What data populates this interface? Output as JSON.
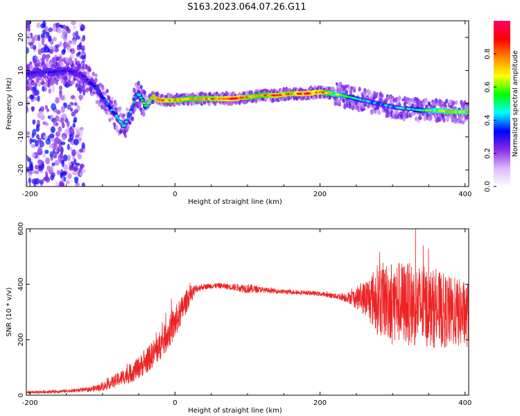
{
  "title": "S163.2023.064.07.26.G11",
  "chart_data": [
    {
      "type": "heatmap",
      "xlabel": "Height of straight line (km)",
      "ylabel": "Frequency (Hz)",
      "xlim": [
        -205,
        405
      ],
      "ylim": [
        -25,
        25
      ],
      "xticks": [
        -200,
        0,
        200,
        400
      ],
      "yticks": [
        20,
        10,
        0,
        -10,
        -20
      ],
      "colorbar": {
        "label": "Normalized spectral amplitude",
        "ticks": [
          "0.0",
          "0.2",
          "0.4",
          "0.6",
          "0.8"
        ],
        "range": [
          0,
          1
        ],
        "colormap": [
          "#ffffff",
          "#d9b8ff",
          "#8a2be2",
          "#0000ff",
          "#00ffff",
          "#00ff00",
          "#ffff00",
          "#ff8800",
          "#ff0000",
          "#ff0066"
        ]
      },
      "ridge": {
        "x": [
          -205,
          -190,
          -170,
          -150,
          -130,
          -110,
          -100,
          -90,
          -80,
          -70,
          -60,
          -55,
          -50,
          -45,
          -40,
          -35,
          -30,
          -20,
          0,
          20,
          50,
          80,
          100,
          120,
          140,
          160,
          180,
          200,
          220,
          240,
          260,
          280,
          300,
          320,
          340,
          360,
          380,
          405
        ],
        "y": [
          9,
          9.5,
          9.5,
          10,
          9,
          5,
          2,
          -1,
          -4,
          -7,
          -2,
          2,
          3,
          1,
          -1,
          1,
          2,
          1,
          1,
          1.5,
          1.5,
          1.5,
          2,
          2.5,
          2.5,
          3,
          3,
          3.5,
          3,
          2,
          1,
          0,
          -1,
          -1.5,
          -2,
          -2,
          -2.5,
          -2.5
        ],
        "amplitude": [
          0.3,
          0.35,
          0.35,
          0.35,
          0.3,
          0.35,
          0.4,
          0.4,
          0.45,
          0.5,
          0.5,
          0.5,
          0.5,
          0.6,
          0.6,
          0.7,
          0.85,
          0.9,
          0.85,
          0.8,
          0.85,
          0.95,
          0.85,
          0.8,
          0.9,
          0.85,
          0.95,
          0.9,
          0.7,
          0.6,
          0.5,
          0.45,
          0.45,
          0.5,
          0.6,
          0.7,
          0.75,
          0.7
        ]
      }
    },
    {
      "type": "line",
      "xlabel": "Height of straight line (km)",
      "ylabel": "SNR (10 * v/v)",
      "xlim": [
        -205,
        405
      ],
      "ylim": [
        0,
        600
      ],
      "xticks": [
        -200,
        0,
        200,
        400
      ],
      "yticks": [
        0,
        200,
        400,
        600
      ],
      "series": [
        {
          "color": "#ee2222",
          "x": [
            -205,
            -180,
            -150,
            -120,
            -100,
            -80,
            -60,
            -40,
            -20,
            0,
            10,
            20,
            30,
            40,
            60,
            80,
            100,
            120,
            140,
            160,
            180,
            200,
            220,
            240,
            260,
            280,
            300,
            320,
            340,
            360,
            380,
            405
          ],
          "y": [
            10,
            12,
            15,
            20,
            30,
            55,
            80,
            120,
            180,
            260,
            310,
            360,
            385,
            392,
            395,
            390,
            385,
            380,
            375,
            372,
            370,
            365,
            358,
            352,
            350,
            345,
            340,
            330,
            320,
            310,
            300,
            290
          ],
          "noise": [
            5,
            6,
            6,
            8,
            15,
            25,
            35,
            45,
            55,
            60,
            50,
            35,
            15,
            10,
            10,
            12,
            18,
            10,
            8,
            8,
            8,
            8,
            10,
            20,
            60,
            130,
            150,
            150,
            150,
            140,
            130,
            120
          ]
        }
      ]
    }
  ]
}
